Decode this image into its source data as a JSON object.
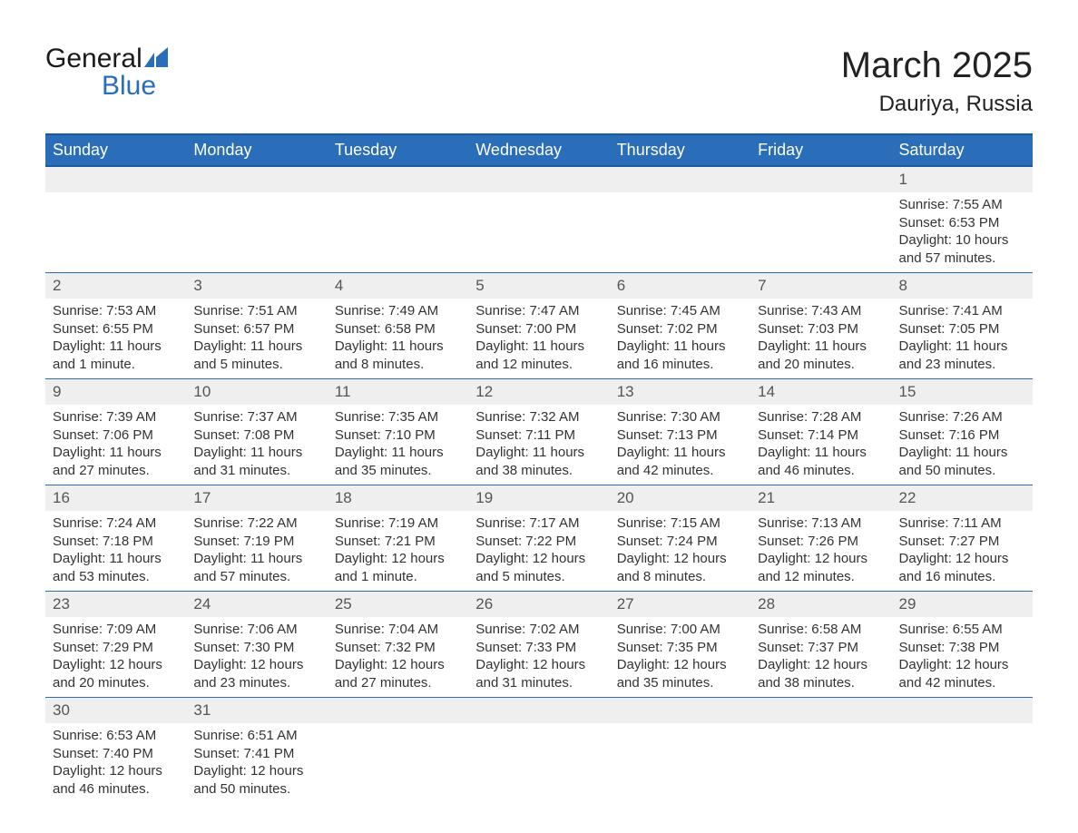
{
  "logo": {
    "text1": "General",
    "text2": "Blue",
    "fill_color": "#2a6db8"
  },
  "title": {
    "month_year": "March 2025",
    "location": "Dauriya, Russia"
  },
  "colors": {
    "header_bg": "#2a6db8",
    "header_border": "#1e5a9e",
    "daynum_bg": "#efefef",
    "text": "#333333",
    "body_bg": "#ffffff"
  },
  "weekdays": [
    "Sunday",
    "Monday",
    "Tuesday",
    "Wednesday",
    "Thursday",
    "Friday",
    "Saturday"
  ],
  "weeks": [
    [
      null,
      null,
      null,
      null,
      null,
      null,
      {
        "n": "1",
        "sunrise": "Sunrise: 7:55 AM",
        "sunset": "Sunset: 6:53 PM",
        "d1": "Daylight: 10 hours",
        "d2": "and 57 minutes."
      }
    ],
    [
      {
        "n": "2",
        "sunrise": "Sunrise: 7:53 AM",
        "sunset": "Sunset: 6:55 PM",
        "d1": "Daylight: 11 hours",
        "d2": "and 1 minute."
      },
      {
        "n": "3",
        "sunrise": "Sunrise: 7:51 AM",
        "sunset": "Sunset: 6:57 PM",
        "d1": "Daylight: 11 hours",
        "d2": "and 5 minutes."
      },
      {
        "n": "4",
        "sunrise": "Sunrise: 7:49 AM",
        "sunset": "Sunset: 6:58 PM",
        "d1": "Daylight: 11 hours",
        "d2": "and 8 minutes."
      },
      {
        "n": "5",
        "sunrise": "Sunrise: 7:47 AM",
        "sunset": "Sunset: 7:00 PM",
        "d1": "Daylight: 11 hours",
        "d2": "and 12 minutes."
      },
      {
        "n": "6",
        "sunrise": "Sunrise: 7:45 AM",
        "sunset": "Sunset: 7:02 PM",
        "d1": "Daylight: 11 hours",
        "d2": "and 16 minutes."
      },
      {
        "n": "7",
        "sunrise": "Sunrise: 7:43 AM",
        "sunset": "Sunset: 7:03 PM",
        "d1": "Daylight: 11 hours",
        "d2": "and 20 minutes."
      },
      {
        "n": "8",
        "sunrise": "Sunrise: 7:41 AM",
        "sunset": "Sunset: 7:05 PM",
        "d1": "Daylight: 11 hours",
        "d2": "and 23 minutes."
      }
    ],
    [
      {
        "n": "9",
        "sunrise": "Sunrise: 7:39 AM",
        "sunset": "Sunset: 7:06 PM",
        "d1": "Daylight: 11 hours",
        "d2": "and 27 minutes."
      },
      {
        "n": "10",
        "sunrise": "Sunrise: 7:37 AM",
        "sunset": "Sunset: 7:08 PM",
        "d1": "Daylight: 11 hours",
        "d2": "and 31 minutes."
      },
      {
        "n": "11",
        "sunrise": "Sunrise: 7:35 AM",
        "sunset": "Sunset: 7:10 PM",
        "d1": "Daylight: 11 hours",
        "d2": "and 35 minutes."
      },
      {
        "n": "12",
        "sunrise": "Sunrise: 7:32 AM",
        "sunset": "Sunset: 7:11 PM",
        "d1": "Daylight: 11 hours",
        "d2": "and 38 minutes."
      },
      {
        "n": "13",
        "sunrise": "Sunrise: 7:30 AM",
        "sunset": "Sunset: 7:13 PM",
        "d1": "Daylight: 11 hours",
        "d2": "and 42 minutes."
      },
      {
        "n": "14",
        "sunrise": "Sunrise: 7:28 AM",
        "sunset": "Sunset: 7:14 PM",
        "d1": "Daylight: 11 hours",
        "d2": "and 46 minutes."
      },
      {
        "n": "15",
        "sunrise": "Sunrise: 7:26 AM",
        "sunset": "Sunset: 7:16 PM",
        "d1": "Daylight: 11 hours",
        "d2": "and 50 minutes."
      }
    ],
    [
      {
        "n": "16",
        "sunrise": "Sunrise: 7:24 AM",
        "sunset": "Sunset: 7:18 PM",
        "d1": "Daylight: 11 hours",
        "d2": "and 53 minutes."
      },
      {
        "n": "17",
        "sunrise": "Sunrise: 7:22 AM",
        "sunset": "Sunset: 7:19 PM",
        "d1": "Daylight: 11 hours",
        "d2": "and 57 minutes."
      },
      {
        "n": "18",
        "sunrise": "Sunrise: 7:19 AM",
        "sunset": "Sunset: 7:21 PM",
        "d1": "Daylight: 12 hours",
        "d2": "and 1 minute."
      },
      {
        "n": "19",
        "sunrise": "Sunrise: 7:17 AM",
        "sunset": "Sunset: 7:22 PM",
        "d1": "Daylight: 12 hours",
        "d2": "and 5 minutes."
      },
      {
        "n": "20",
        "sunrise": "Sunrise: 7:15 AM",
        "sunset": "Sunset: 7:24 PM",
        "d1": "Daylight: 12 hours",
        "d2": "and 8 minutes."
      },
      {
        "n": "21",
        "sunrise": "Sunrise: 7:13 AM",
        "sunset": "Sunset: 7:26 PM",
        "d1": "Daylight: 12 hours",
        "d2": "and 12 minutes."
      },
      {
        "n": "22",
        "sunrise": "Sunrise: 7:11 AM",
        "sunset": "Sunset: 7:27 PM",
        "d1": "Daylight: 12 hours",
        "d2": "and 16 minutes."
      }
    ],
    [
      {
        "n": "23",
        "sunrise": "Sunrise: 7:09 AM",
        "sunset": "Sunset: 7:29 PM",
        "d1": "Daylight: 12 hours",
        "d2": "and 20 minutes."
      },
      {
        "n": "24",
        "sunrise": "Sunrise: 7:06 AM",
        "sunset": "Sunset: 7:30 PM",
        "d1": "Daylight: 12 hours",
        "d2": "and 23 minutes."
      },
      {
        "n": "25",
        "sunrise": "Sunrise: 7:04 AM",
        "sunset": "Sunset: 7:32 PM",
        "d1": "Daylight: 12 hours",
        "d2": "and 27 minutes."
      },
      {
        "n": "26",
        "sunrise": "Sunrise: 7:02 AM",
        "sunset": "Sunset: 7:33 PM",
        "d1": "Daylight: 12 hours",
        "d2": "and 31 minutes."
      },
      {
        "n": "27",
        "sunrise": "Sunrise: 7:00 AM",
        "sunset": "Sunset: 7:35 PM",
        "d1": "Daylight: 12 hours",
        "d2": "and 35 minutes."
      },
      {
        "n": "28",
        "sunrise": "Sunrise: 6:58 AM",
        "sunset": "Sunset: 7:37 PM",
        "d1": "Daylight: 12 hours",
        "d2": "and 38 minutes."
      },
      {
        "n": "29",
        "sunrise": "Sunrise: 6:55 AM",
        "sunset": "Sunset: 7:38 PM",
        "d1": "Daylight: 12 hours",
        "d2": "and 42 minutes."
      }
    ],
    [
      {
        "n": "30",
        "sunrise": "Sunrise: 6:53 AM",
        "sunset": "Sunset: 7:40 PM",
        "d1": "Daylight: 12 hours",
        "d2": "and 46 minutes."
      },
      {
        "n": "31",
        "sunrise": "Sunrise: 6:51 AM",
        "sunset": "Sunset: 7:41 PM",
        "d1": "Daylight: 12 hours",
        "d2": "and 50 minutes."
      },
      null,
      null,
      null,
      null,
      null
    ]
  ]
}
